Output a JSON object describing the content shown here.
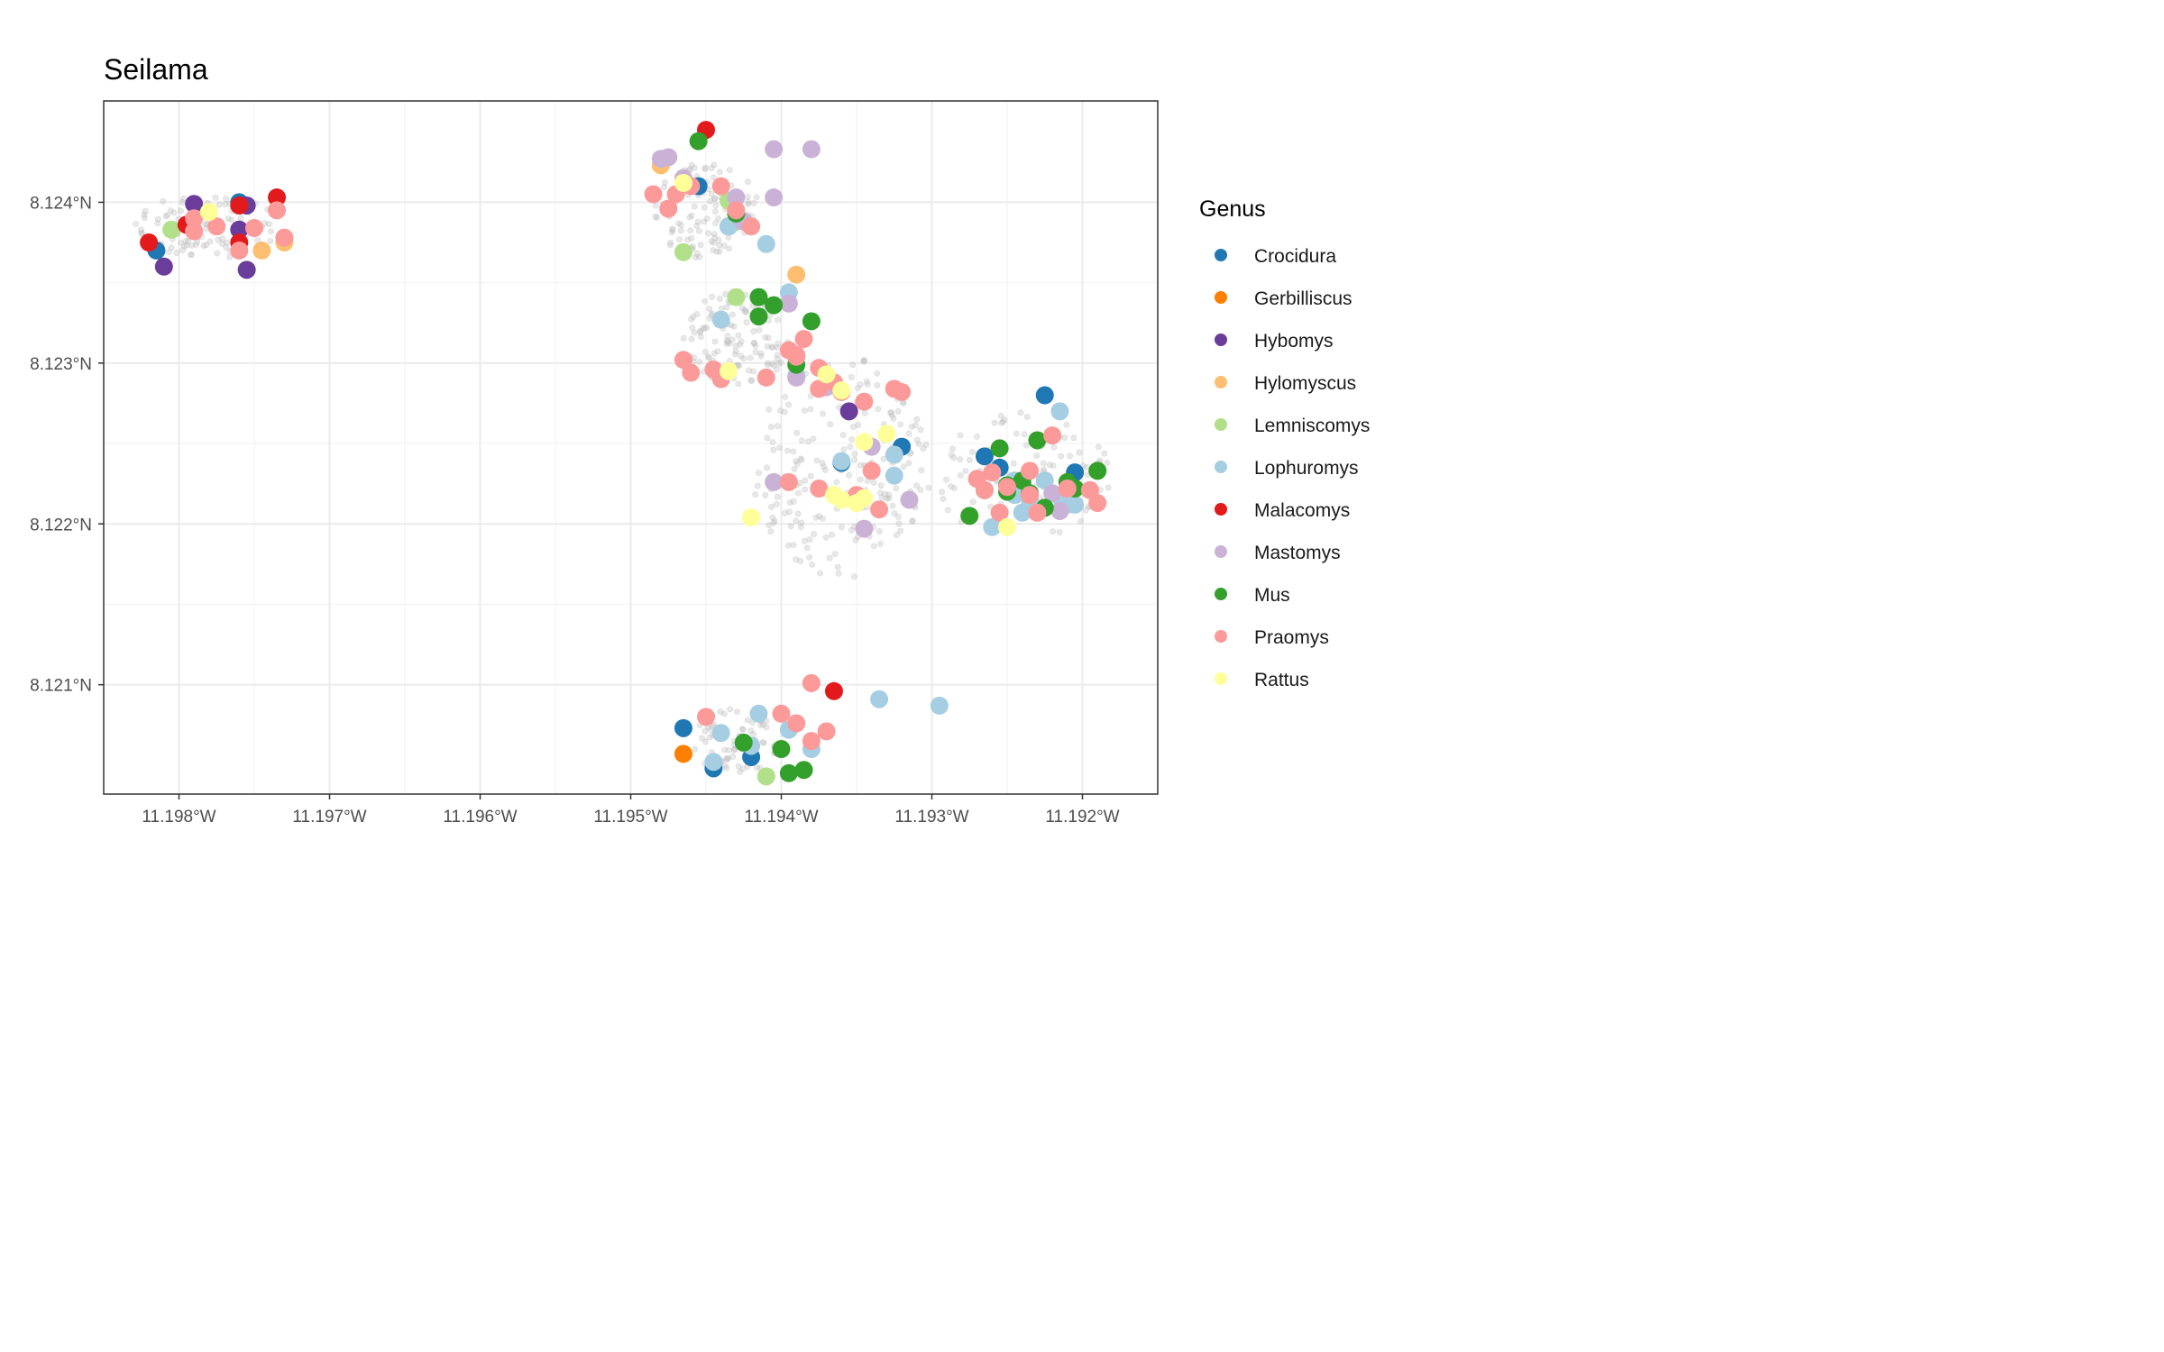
{
  "chart_data": {
    "type": "scatter",
    "title": "Seilama",
    "xlabel": "",
    "ylabel": "",
    "xlim": [
      -11.1985,
      -11.1915
    ],
    "ylim": [
      8.12032,
      8.12463
    ],
    "x_ticks": [
      {
        "value": -11.198,
        "label": "11.198°W"
      },
      {
        "value": -11.197,
        "label": "11.197°W"
      },
      {
        "value": -11.196,
        "label": "11.196°W"
      },
      {
        "value": -11.195,
        "label": "11.195°W"
      },
      {
        "value": -11.194,
        "label": "11.194°W"
      },
      {
        "value": -11.193,
        "label": "11.193°W"
      },
      {
        "value": -11.192,
        "label": "11.192°W"
      }
    ],
    "y_ticks": [
      {
        "value": 8.121,
        "label": "8.121°N"
      },
      {
        "value": 8.122,
        "label": "8.122°N"
      },
      {
        "value": 8.123,
        "label": "8.123°N"
      },
      {
        "value": 8.124,
        "label": "8.124°N"
      }
    ],
    "grid": true,
    "legend": {
      "title": "Genus",
      "position": "right",
      "entries": [
        {
          "name": "Crocidura",
          "color": "#1f78b4"
        },
        {
          "name": "Gerbilliscus",
          "color": "#ff7f00"
        },
        {
          "name": "Hybomys",
          "color": "#6a3d9a"
        },
        {
          "name": "Hylomyscus",
          "color": "#fdbf6f"
        },
        {
          "name": "Lemniscomys",
          "color": "#b2df8a"
        },
        {
          "name": "Lophuromys",
          "color": "#a6cee3"
        },
        {
          "name": "Malacomys",
          "color": "#e31a1c"
        },
        {
          "name": "Mastomys",
          "color": "#cab2d6"
        },
        {
          "name": "Mus",
          "color": "#33a02c"
        },
        {
          "name": "Praomys",
          "color": "#fb9a99"
        },
        {
          "name": "Rattus",
          "color": "#ffff99"
        }
      ]
    },
    "background_points": {
      "description": "trap locations, light grey",
      "color": "#bdbdbd",
      "clusters": [
        {
          "center": [
            -11.1978,
            8.12385
          ],
          "spread": [
            0.0005,
            0.0002
          ],
          "n": 90
        },
        {
          "center": [
            -11.1945,
            8.12395
          ],
          "spread": [
            0.00035,
            0.0003
          ],
          "n": 110
        },
        {
          "center": [
            -11.1943,
            8.12315
          ],
          "spread": [
            0.00035,
            0.0003
          ],
          "n": 120
        },
        {
          "center": [
            -11.1936,
            8.12235
          ],
          "spread": [
            0.0006,
            0.0007
          ],
          "n": 200
        },
        {
          "center": [
            -11.1924,
            8.1223
          ],
          "spread": [
            0.0006,
            0.0004
          ],
          "n": 110
        },
        {
          "center": [
            -11.1943,
            8.12065
          ],
          "spread": [
            0.0003,
            0.0002
          ],
          "n": 70
        }
      ]
    },
    "series": [
      {
        "name": "Crocidura",
        "x": [
          -11.19815,
          -11.1976,
          -11.19455,
          -11.19435,
          -11.1932,
          -11.1936,
          -11.19255,
          -11.1924,
          -11.19225,
          -11.19205,
          -11.19265,
          -11.19465,
          -11.19445,
          -11.1942
        ],
        "y": [
          8.1237,
          8.124,
          8.1241,
          8.12385,
          8.12248,
          8.12238,
          8.12235,
          8.12225,
          8.1228,
          8.12232,
          8.12242,
          8.12073,
          8.12048,
          8.12055
        ]
      },
      {
        "name": "Gerbilliscus",
        "x": [
          -11.19465
        ],
        "y": [
          8.12057
        ]
      },
      {
        "name": "Hybomys",
        "x": [
          -11.1979,
          -11.19755,
          -11.1981,
          -11.1976,
          -11.19755,
          -11.19355
        ],
        "y": [
          8.12399,
          8.12398,
          8.1236,
          8.12383,
          8.12358,
          8.1227
        ]
      },
      {
        "name": "Hylomyscus",
        "x": [
          -11.1948,
          -11.19745,
          -11.1973,
          -11.1939
        ],
        "y": [
          8.12423,
          8.1237,
          8.12375,
          8.12355
        ]
      },
      {
        "name": "Lemniscomys",
        "x": [
          -11.19805,
          -11.19435,
          -11.1943,
          -11.19465,
          -11.1943,
          -11.1941
        ],
        "y": [
          8.12383,
          8.12401,
          8.12388,
          8.12369,
          8.12341,
          8.12043
        ]
      },
      {
        "name": "Lophuromys",
        "x": [
          -11.19435,
          -11.1941,
          -11.1944,
          -11.19395,
          -11.1939,
          -11.1936,
          -11.19325,
          -11.19325,
          -11.19245,
          -11.19215,
          -11.19225,
          -11.19235,
          -11.19205,
          -11.19245,
          -11.19215,
          -11.1944,
          -11.19415,
          -11.19395,
          -11.19445,
          -11.1942,
          -11.1938,
          -11.1926,
          -11.19335,
          -11.19295,
          -11.1924,
          -11.1921
        ],
        "y": [
          8.12385,
          8.12374,
          8.12327,
          8.12344,
          8.12292,
          8.12239,
          8.12243,
          8.1223,
          8.12227,
          8.1227,
          8.12227,
          8.12215,
          8.12212,
          8.12218,
          8.12217,
          8.1207,
          8.12082,
          8.12072,
          8.12052,
          8.12062,
          8.1206,
          8.12198,
          8.12091,
          8.12087,
          8.12207,
          8.12212
        ]
      },
      {
        "name": "Malacomys",
        "x": [
          -11.1982,
          -11.19795,
          -11.1976,
          -11.1976,
          -11.19735,
          -11.1945,
          -11.19365
        ],
        "y": [
          8.12375,
          8.12386,
          8.12375,
          8.12398,
          8.12403,
          8.12445,
          8.12096
        ]
      },
      {
        "name": "Mastomys",
        "x": [
          -11.1948,
          -11.1943,
          -11.19465,
          -11.19425,
          -11.19405,
          -11.1938,
          -11.19395,
          -11.1939,
          -11.19475,
          -11.19405,
          -11.19345,
          -11.1937,
          -11.19405,
          -11.19315,
          -11.1934,
          -11.19215,
          -11.1922
        ],
        "y": [
          8.12427,
          8.12403,
          8.12415,
          8.12388,
          8.12433,
          8.12433,
          8.12337,
          8.12291,
          8.12428,
          8.12403,
          8.12197,
          8.12285,
          8.12226,
          8.12215,
          8.12248,
          8.12208,
          8.12219
        ]
      },
      {
        "name": "Mus",
        "x": [
          -11.19455,
          -11.1943,
          -11.19415,
          -11.19415,
          -11.19405,
          -11.1938,
          -11.1939,
          -11.19265,
          -11.19275,
          -11.19255,
          -11.1925,
          -11.1925,
          -11.1923,
          -11.19205,
          -11.1921,
          -11.19235,
          -11.1919,
          -11.194,
          -11.19425,
          -11.19385,
          -11.19395,
          -11.1924,
          -11.19225
        ],
        "y": [
          8.12438,
          8.12393,
          8.12329,
          8.12341,
          8.12336,
          8.12326,
          8.12299,
          8.12221,
          8.12205,
          8.12247,
          8.12224,
          8.1222,
          8.12252,
          8.12222,
          8.12226,
          8.12219,
          8.12233,
          8.1206,
          8.12064,
          8.12047,
          8.12045,
          8.12227,
          8.1221
        ]
      },
      {
        "name": "Praomys",
        "x": [
          -11.1979,
          -11.19775,
          -11.1975,
          -11.19735,
          -11.1979,
          -11.1976,
          -11.1973,
          -11.1947,
          -11.1946,
          -11.19485,
          -11.19475,
          -11.1942,
          -11.1944,
          -11.1943,
          -11.19385,
          -11.1939,
          -11.19465,
          -11.19445,
          -11.1946,
          -11.1941,
          -11.19395,
          -11.1936,
          -11.19375,
          -11.1944,
          -11.1939,
          -11.19375,
          -11.19365,
          -11.19345,
          -11.1932,
          -11.19325,
          -11.1934,
          -11.1935,
          -11.19335,
          -11.19395,
          -11.19375,
          -11.19265,
          -11.1925,
          -11.19255,
          -11.19235,
          -11.19235,
          -11.1921,
          -11.1922,
          -11.1927,
          -11.1919,
          -11.1926,
          -11.19195,
          -11.1923,
          -11.1938,
          -11.1938,
          -11.1937,
          -11.1945,
          -11.1939,
          -11.194
        ],
        "y": [
          8.1239,
          8.12385,
          8.12384,
          8.12395,
          8.12382,
          8.1237,
          8.12378,
          8.12405,
          8.1241,
          8.12405,
          8.12396,
          8.12385,
          8.1241,
          8.12395,
          8.12315,
          8.12304,
          8.12302,
          8.12296,
          8.12294,
          8.12291,
          8.12308,
          8.12282,
          8.12284,
          8.1229,
          8.12305,
          8.12297,
          8.12288,
          8.12276,
          8.12282,
          8.12284,
          8.12233,
          8.12218,
          8.12209,
          8.12226,
          8.12222,
          8.12221,
          8.12223,
          8.12207,
          8.12218,
          8.12233,
          8.12222,
          8.12255,
          8.12228,
          8.12213,
          8.12232,
          8.12221,
          8.12207,
          8.12101,
          8.12065,
          8.12071,
          8.1208,
          8.12076,
          8.12082
        ]
      },
      {
        "name": "Rattus",
        "x": [
          -11.1978,
          -11.19465,
          -11.19435,
          -11.1937,
          -11.1933,
          -11.1936,
          -11.19365,
          -11.1936,
          -11.19345,
          -11.19345,
          -11.1942,
          -11.1935,
          -11.1925
        ],
        "y": [
          8.12394,
          8.12412,
          8.12295,
          8.12293,
          8.12256,
          8.12283,
          8.12218,
          8.12215,
          8.12216,
          8.12251,
          8.12204,
          8.12213,
          8.12198
        ]
      }
    ]
  }
}
